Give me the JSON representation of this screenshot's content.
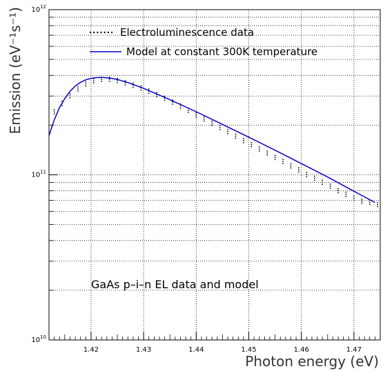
{
  "chart_data": {
    "type": "scatter",
    "xlabel": "Photon energy (eV)",
    "ylabel": "Emission (eV⁻¹s⁻¹)",
    "xlim": [
      1.412,
      1.475
    ],
    "ylim_log10": [
      10,
      12
    ],
    "y_scale": "log",
    "grid": true,
    "legend_position": "top",
    "annotation": "GaAs p–i–n EL data and model",
    "x_ticks": [
      {
        "value": 1.42,
        "label": "1.42"
      },
      {
        "value": 1.43,
        "label": "1.43"
      },
      {
        "value": 1.44,
        "label": "1.44"
      },
      {
        "value": 1.45,
        "label": "1.45"
      },
      {
        "value": 1.46,
        "label": "1.46"
      },
      {
        "value": 1.47,
        "label": "1.47"
      }
    ],
    "y_ticks": [
      {
        "log10": 10,
        "base": "10",
        "exp": "10"
      },
      {
        "log10": 11,
        "base": "10",
        "exp": "11"
      },
      {
        "log10": 12,
        "base": "10",
        "exp": "12"
      }
    ],
    "series": [
      {
        "name": "Electroluminescence data",
        "kind": "points",
        "color": "#000000",
        "x": [
          1.413,
          1.4145,
          1.416,
          1.4175,
          1.419,
          1.4205,
          1.422,
          1.4235,
          1.425,
          1.4265,
          1.428,
          1.4295,
          1.431,
          1.4325,
          1.434,
          1.4355,
          1.437,
          1.4385,
          1.44,
          1.4415,
          1.443,
          1.4445,
          1.446,
          1.4475,
          1.449,
          1.4505,
          1.452,
          1.4535,
          1.455,
          1.4565,
          1.458,
          1.4595,
          1.461,
          1.4625,
          1.464,
          1.4655,
          1.467,
          1.4685,
          1.47,
          1.4715,
          1.473,
          1.4745
        ],
        "y": [
          240000000000.0,
          270000000000.0,
          300000000000.0,
          330000000000.0,
          355000000000.0,
          370000000000.0,
          378000000000.0,
          378000000000.0,
          372000000000.0,
          360000000000.0,
          348000000000.0,
          335000000000.0,
          320000000000.0,
          305000000000.0,
          290000000000.0,
          275000000000.0,
          260000000000.0,
          245000000000.0,
          230000000000.0,
          217000000000.0,
          205000000000.0,
          193000000000.0,
          182000000000.0,
          171000000000.0,
          161000000000.0,
          152000000000.0,
          143000000000.0,
          135000000000.0,
          127000000000.0,
          120000000000.0,
          113000000000.0,
          107000000000.0,
          100000000000.0,
          95000000000.0,
          90000000000.0,
          85000000000.0,
          80000000000.0,
          76000000000.0,
          72000000000.0,
          69000000000.0,
          68000000000.0,
          66000000000.0
        ]
      },
      {
        "name": "Model at constant 300K temperature",
        "kind": "line",
        "color": "#0000cc",
        "x": [
          1.412,
          1.413,
          1.414,
          1.415,
          1.416,
          1.417,
          1.418,
          1.419,
          1.42,
          1.421,
          1.422,
          1.423,
          1.424,
          1.425,
          1.427,
          1.43,
          1.435,
          1.44,
          1.445,
          1.45,
          1.455,
          1.46,
          1.465,
          1.47,
          1.474
        ],
        "y": [
          173000000000.0,
          215000000000.0,
          255000000000.0,
          290000000000.0,
          320000000000.0,
          345000000000.0,
          363000000000.0,
          376000000000.0,
          384000000000.0,
          388000000000.0,
          389000000000.0,
          387000000000.0,
          383000000000.0,
          378000000000.0,
          362000000000.0,
          334000000000.0,
          285000000000.0,
          241000000000.0,
          202000000000.0,
          169000000000.0,
          141000000000.0,
          117000000000.0,
          97000000000.0,
          79500000000.0,
          68000000000.0
        ]
      }
    ]
  }
}
